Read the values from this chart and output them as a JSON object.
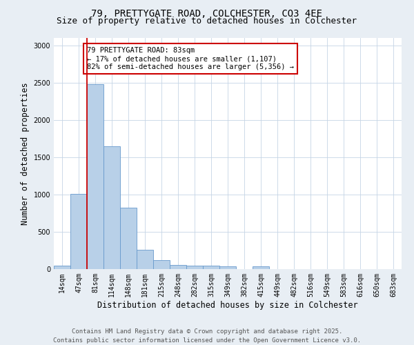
{
  "title_line1": "79, PRETTYGATE ROAD, COLCHESTER, CO3 4EE",
  "title_line2": "Size of property relative to detached houses in Colchester",
  "xlabel": "Distribution of detached houses by size in Colchester",
  "ylabel": "Number of detached properties",
  "bar_labels": [
    "14sqm",
    "47sqm",
    "81sqm",
    "114sqm",
    "148sqm",
    "181sqm",
    "215sqm",
    "248sqm",
    "282sqm",
    "315sqm",
    "349sqm",
    "382sqm",
    "415sqm",
    "449sqm",
    "482sqm",
    "516sqm",
    "549sqm",
    "583sqm",
    "616sqm",
    "650sqm",
    "683sqm"
  ],
  "bar_values": [
    50,
    1007,
    2480,
    1650,
    820,
    260,
    120,
    55,
    45,
    50,
    35,
    0,
    35,
    0,
    0,
    0,
    0,
    0,
    0,
    0,
    0
  ],
  "bar_color": "#b8d0e8",
  "bar_edge_color": "#6699cc",
  "property_line_x": 1.5,
  "property_line_color": "#cc0000",
  "annotation_text": "79 PRETTYGATE ROAD: 83sqm\n← 17% of detached houses are smaller (1,107)\n82% of semi-detached houses are larger (5,356) →",
  "annotation_box_edgecolor": "#cc0000",
  "annotation_box_facecolor": "#ffffff",
  "ylim": [
    0,
    3100
  ],
  "yticks": [
    0,
    500,
    1000,
    1500,
    2000,
    2500,
    3000
  ],
  "background_color": "#e8eef4",
  "plot_bg_color": "#ffffff",
  "footer_line1": "Contains HM Land Registry data © Crown copyright and database right 2025.",
  "footer_line2": "Contains public sector information licensed under the Open Government Licence v3.0.",
  "title_fontsize": 10,
  "subtitle_fontsize": 9,
  "axis_label_fontsize": 8.5,
  "tick_fontsize": 7,
  "annotation_fontsize": 7.5,
  "footer_fontsize": 6.5
}
